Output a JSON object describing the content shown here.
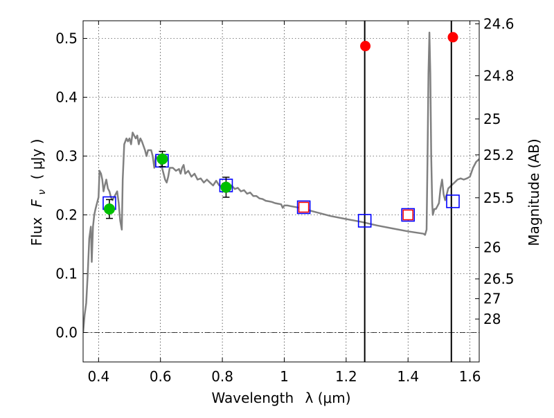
{
  "chart_data": {
    "type": "scatter",
    "xlabel": "Wavelength",
    "xlabel_symbol": "λ (μm)",
    "ylabel": "Flux",
    "ylabel_symbol": "F",
    "ylabel_sub": "ν",
    "ylabel_unit": "( μJy )",
    "y2label": "Magnitude (AB)",
    "xlim": [
      0.35,
      1.63
    ],
    "ylim": [
      -0.05,
      0.53
    ],
    "grid": true,
    "x_ticks": [
      {
        "v": 0.4,
        "label": "0.4"
      },
      {
        "v": 0.6,
        "label": "0.6"
      },
      {
        "v": 0.8,
        "label": "0.8"
      },
      {
        "v": 1.0,
        "label": "1"
      },
      {
        "v": 1.2,
        "label": "1.2"
      },
      {
        "v": 1.4,
        "label": "1.4"
      },
      {
        "v": 1.6,
        "label": "1.6"
      }
    ],
    "y_ticks": [
      {
        "v": 0.0,
        "label": "0.0"
      },
      {
        "v": 0.1,
        "label": "0.1"
      },
      {
        "v": 0.2,
        "label": "0.2"
      },
      {
        "v": 0.3,
        "label": "0.3"
      },
      {
        "v": 0.4,
        "label": "0.4"
      },
      {
        "v": 0.5,
        "label": "0.5"
      }
    ],
    "mag_ticks": [
      {
        "mag": 24.6,
        "label": "24.6"
      },
      {
        "mag": 24.8,
        "label": "24.8"
      },
      {
        "mag": 25.0,
        "label": "25"
      },
      {
        "mag": 25.2,
        "label": "25.2"
      },
      {
        "mag": 25.5,
        "label": "25.5"
      },
      {
        "mag": 26.0,
        "label": "26"
      },
      {
        "mag": 26.5,
        "label": "26.5"
      },
      {
        "mag": 27.0,
        "label": "27"
      },
      {
        "mag": 28.0,
        "label": "28"
      }
    ],
    "vertical_lines": [
      1.26,
      1.54
    ],
    "model_spectrum": {
      "color": "#808080",
      "points": [
        [
          0.35,
          0.0
        ],
        [
          0.355,
          0.03
        ],
        [
          0.36,
          0.05
        ],
        [
          0.365,
          0.1
        ],
        [
          0.37,
          0.16
        ],
        [
          0.375,
          0.18
        ],
        [
          0.378,
          0.12
        ],
        [
          0.382,
          0.18
        ],
        [
          0.386,
          0.2
        ],
        [
          0.39,
          0.21
        ],
        [
          0.395,
          0.22
        ],
        [
          0.4,
          0.23
        ],
        [
          0.403,
          0.275
        ],
        [
          0.408,
          0.27
        ],
        [
          0.412,
          0.26
        ],
        [
          0.416,
          0.24
        ],
        [
          0.42,
          0.25
        ],
        [
          0.425,
          0.26
        ],
        [
          0.43,
          0.245
        ],
        [
          0.435,
          0.24
        ],
        [
          0.44,
          0.23
        ],
        [
          0.445,
          0.225
        ],
        [
          0.45,
          0.23
        ],
        [
          0.455,
          0.235
        ],
        [
          0.46,
          0.24
        ],
        [
          0.465,
          0.22
        ],
        [
          0.47,
          0.19
        ],
        [
          0.475,
          0.175
        ],
        [
          0.478,
          0.26
        ],
        [
          0.483,
          0.32
        ],
        [
          0.49,
          0.33
        ],
        [
          0.495,
          0.325
        ],
        [
          0.5,
          0.33
        ],
        [
          0.505,
          0.32
        ],
        [
          0.51,
          0.34
        ],
        [
          0.515,
          0.335
        ],
        [
          0.52,
          0.33
        ],
        [
          0.525,
          0.335
        ],
        [
          0.53,
          0.32
        ],
        [
          0.535,
          0.33
        ],
        [
          0.54,
          0.325
        ],
        [
          0.55,
          0.31
        ],
        [
          0.555,
          0.3
        ],
        [
          0.56,
          0.31
        ],
        [
          0.565,
          0.31
        ],
        [
          0.57,
          0.31
        ],
        [
          0.575,
          0.3
        ],
        [
          0.58,
          0.28
        ],
        [
          0.585,
          0.3
        ],
        [
          0.59,
          0.295
        ],
        [
          0.6,
          0.29
        ],
        [
          0.605,
          0.28
        ],
        [
          0.61,
          0.27
        ],
        [
          0.615,
          0.26
        ],
        [
          0.62,
          0.255
        ],
        [
          0.625,
          0.265
        ],
        [
          0.63,
          0.28
        ],
        [
          0.64,
          0.28
        ],
        [
          0.65,
          0.275
        ],
        [
          0.66,
          0.278
        ],
        [
          0.665,
          0.27
        ],
        [
          0.67,
          0.28
        ],
        [
          0.675,
          0.285
        ],
        [
          0.68,
          0.27
        ],
        [
          0.69,
          0.275
        ],
        [
          0.7,
          0.265
        ],
        [
          0.71,
          0.27
        ],
        [
          0.72,
          0.26
        ],
        [
          0.73,
          0.262
        ],
        [
          0.74,
          0.255
        ],
        [
          0.75,
          0.26
        ],
        [
          0.76,
          0.255
        ],
        [
          0.77,
          0.25
        ],
        [
          0.78,
          0.258
        ],
        [
          0.79,
          0.25
        ],
        [
          0.8,
          0.248
        ],
        [
          0.81,
          0.252
        ],
        [
          0.82,
          0.245
        ],
        [
          0.83,
          0.25
        ],
        [
          0.84,
          0.244
        ],
        [
          0.85,
          0.246
        ],
        [
          0.86,
          0.24
        ],
        [
          0.87,
          0.242
        ],
        [
          0.88,
          0.236
        ],
        [
          0.89,
          0.238
        ],
        [
          0.9,
          0.232
        ],
        [
          0.91,
          0.232
        ],
        [
          0.92,
          0.228
        ],
        [
          0.93,
          0.227
        ],
        [
          0.94,
          0.224
        ],
        [
          0.95,
          0.223
        ],
        [
          0.96,
          0.222
        ],
        [
          0.97,
          0.22
        ],
        [
          0.98,
          0.219
        ],
        [
          0.99,
          0.218
        ],
        [
          0.995,
          0.212
        ],
        [
          1.0,
          0.216
        ],
        [
          1.01,
          0.216
        ],
        [
          1.02,
          0.215
        ],
        [
          1.05,
          0.212
        ],
        [
          1.1,
          0.205
        ],
        [
          1.15,
          0.198
        ],
        [
          1.2,
          0.193
        ],
        [
          1.25,
          0.188
        ],
        [
          1.3,
          0.182
        ],
        [
          1.35,
          0.177
        ],
        [
          1.4,
          0.172
        ],
        [
          1.45,
          0.168
        ],
        [
          1.455,
          0.166
        ],
        [
          1.46,
          0.175
        ],
        [
          1.463,
          0.3
        ],
        [
          1.466,
          0.44
        ],
        [
          1.469,
          0.51
        ],
        [
          1.472,
          0.44
        ],
        [
          1.475,
          0.3
        ],
        [
          1.478,
          0.22
        ],
        [
          1.48,
          0.2
        ],
        [
          1.485,
          0.21
        ],
        [
          1.49,
          0.21
        ],
        [
          1.495,
          0.215
        ],
        [
          1.5,
          0.22
        ],
        [
          1.505,
          0.245
        ],
        [
          1.51,
          0.26
        ],
        [
          1.515,
          0.235
        ],
        [
          1.52,
          0.225
        ],
        [
          1.525,
          0.235
        ],
        [
          1.53,
          0.245
        ],
        [
          1.54,
          0.25
        ],
        [
          1.55,
          0.255
        ],
        [
          1.56,
          0.26
        ],
        [
          1.57,
          0.262
        ],
        [
          1.58,
          0.26
        ],
        [
          1.59,
          0.262
        ],
        [
          1.6,
          0.265
        ],
        [
          1.61,
          0.28
        ],
        [
          1.62,
          0.29
        ],
        [
          1.63,
          0.295
        ]
      ]
    },
    "model_photometry_squares": [
      {
        "x": 0.435,
        "y": 0.22,
        "inner_red": false
      },
      {
        "x": 0.605,
        "y": 0.292,
        "inner_red": false
      },
      {
        "x": 0.812,
        "y": 0.25,
        "inner_red": false
      },
      {
        "x": 1.063,
        "y": 0.213,
        "inner_red": true
      },
      {
        "x": 1.26,
        "y": 0.19,
        "inner_red": false
      },
      {
        "x": 1.4,
        "y": 0.2,
        "inner_red": true
      },
      {
        "x": 1.545,
        "y": 0.223,
        "inner_red": false
      }
    ],
    "detections_green": [
      {
        "x": 0.435,
        "y": 0.21,
        "err": 0.016
      },
      {
        "x": 0.606,
        "y": 0.295,
        "err": 0.013
      },
      {
        "x": 0.812,
        "y": 0.247,
        "err": 0.017
      }
    ],
    "points_red": [
      {
        "x": 1.262,
        "y": 0.487
      },
      {
        "x": 1.545,
        "y": 0.502
      }
    ],
    "colors": {
      "spectrum": "#808080",
      "square_outer": "#0000ff",
      "square_inner": "#ff0000",
      "detection": "#00bf00",
      "red_point": "#ff0000",
      "vline": "#000000"
    }
  }
}
